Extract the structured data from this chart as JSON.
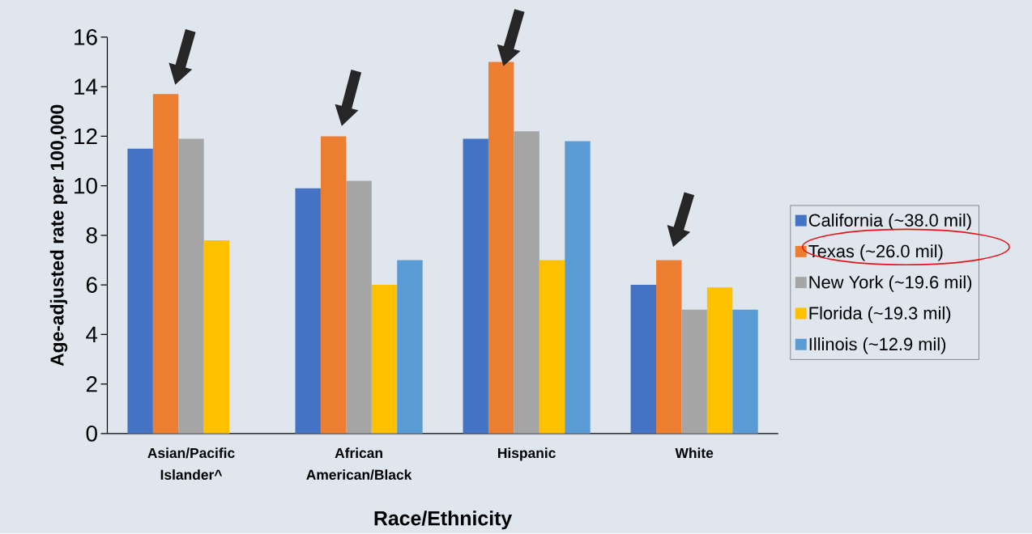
{
  "chart_data": {
    "type": "bar",
    "categories": [
      "Asian/Pacific Islander^",
      "African American/Black",
      "Hispanic",
      "White"
    ],
    "xlabel": "Race/Ethnicity",
    "ylabel": "Age-adjusted rate per 100,000",
    "ylim": [
      0,
      16
    ],
    "yticks": [
      0,
      2,
      4,
      6,
      8,
      10,
      12,
      14,
      16
    ],
    "grid": false,
    "legend": "right",
    "series": [
      {
        "name": "California (~38.0 mil)",
        "color": "#4472c4",
        "values": [
          11.5,
          9.9,
          11.9,
          6.0
        ]
      },
      {
        "name": "Texas (~26.0 mil)",
        "color": "#ed7d31",
        "values": [
          13.7,
          12.0,
          15.0,
          7.0
        ]
      },
      {
        "name": "New York (~19.6 mil)",
        "color": "#a5a5a5",
        "values": [
          11.9,
          10.2,
          12.2,
          5.0
        ]
      },
      {
        "name": "Florida (~19.3 mil)",
        "color": "#ffc000",
        "values": [
          7.8,
          6.0,
          7.0,
          5.9
        ]
      },
      {
        "name": "Illinois (~12.9 mil)",
        "color": "#5b9bd5",
        "values": [
          null,
          7.0,
          11.8,
          5.0
        ]
      }
    ]
  }
}
